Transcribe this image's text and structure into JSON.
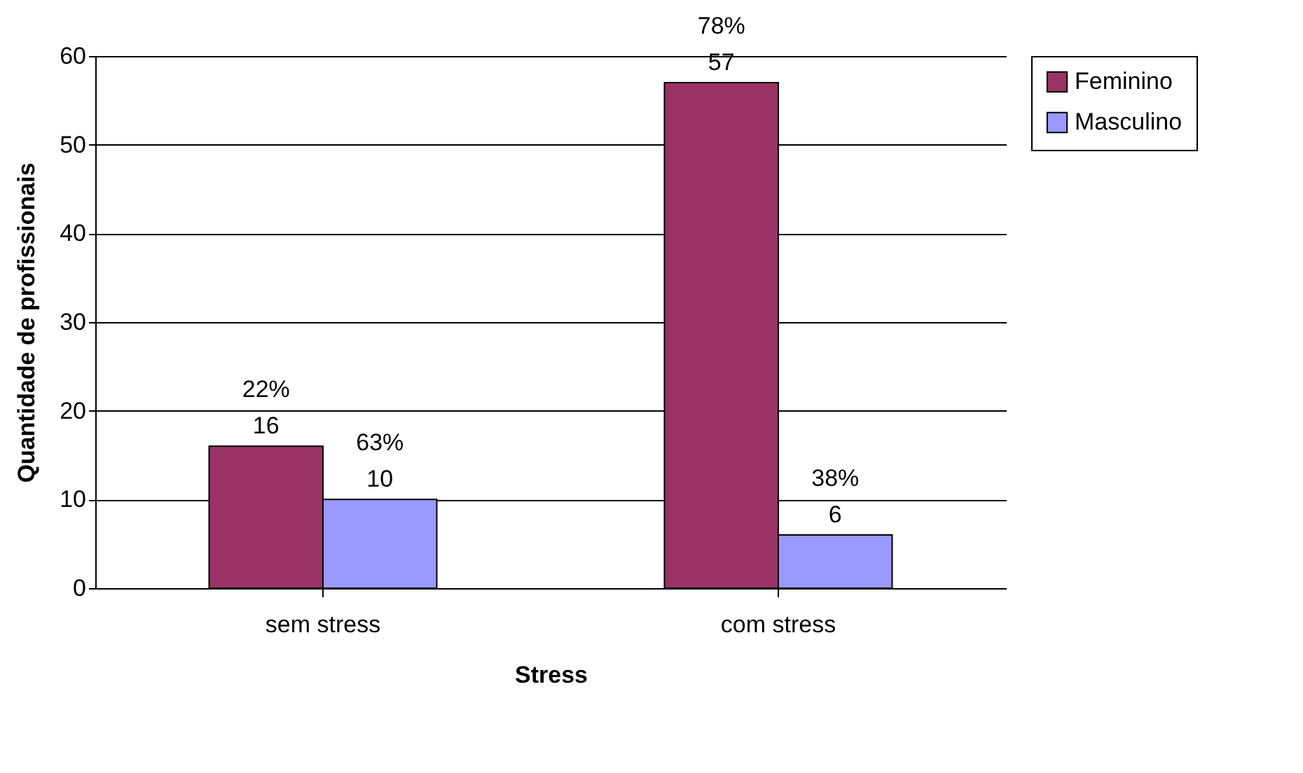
{
  "chart_data": {
    "type": "bar",
    "xlabel": "Stress",
    "ylabel": "Quantidade de profissionais",
    "categories": [
      "sem stress",
      "com stress"
    ],
    "series": [
      {
        "name": "Feminino",
        "color": "#993366",
        "values": [
          16,
          57
        ]
      },
      {
        "name": "Masculino",
        "color": "#9999ff",
        "values": [
          10,
          6
        ]
      }
    ],
    "ylim": [
      0,
      60
    ],
    "yticks": [
      0,
      10,
      20,
      30,
      40,
      50,
      60
    ],
    "grid": "y",
    "legend": "right",
    "data_labels": true,
    "annotations": [
      "22%",
      "63%",
      "78%",
      "38%"
    ]
  }
}
